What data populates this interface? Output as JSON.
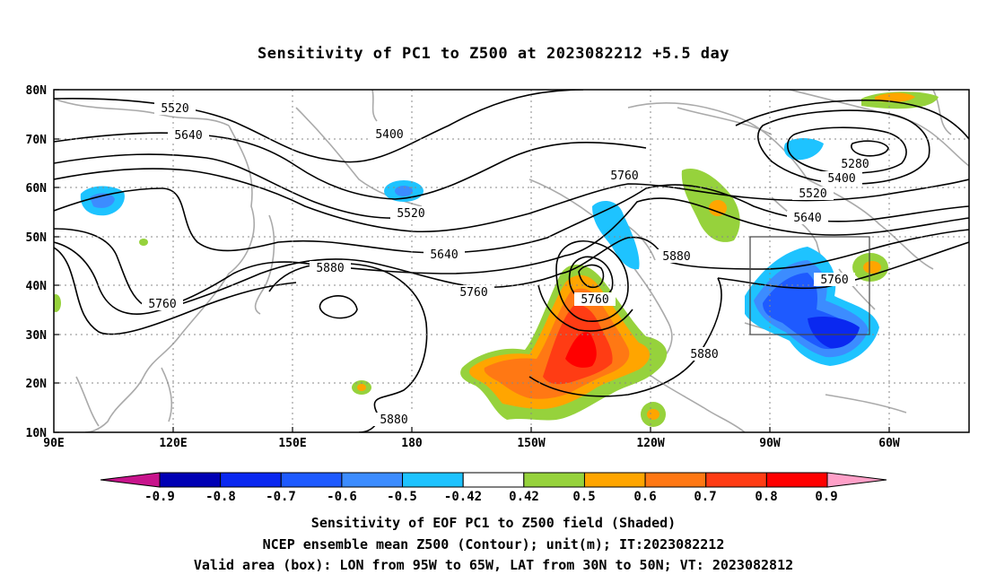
{
  "title": "Sensitivity of PC1 to Z500 at 2023082212 +5.5 day",
  "map": {
    "lat_labels": [
      "80N",
      "70N",
      "60N",
      "50N",
      "40N",
      "30N",
      "20N",
      "10N"
    ],
    "lon_labels": [
      "90E",
      "120E",
      "150E",
      "180",
      "150W",
      "120W",
      "90W",
      "60W"
    ],
    "contour_labels": [
      "5520",
      "5640",
      "5400",
      "5520",
      "5760",
      "5640",
      "5760",
      "5880",
      "5280",
      "5400",
      "5520",
      "5640",
      "5880",
      "5760",
      "5760",
      "5880",
      "5760",
      "5880"
    ],
    "valid_box": {
      "lon_min": "95W",
      "lon_max": "65W",
      "lat_min": "30N",
      "lat_max": "50N"
    }
  },
  "colorbar": {
    "labels": [
      "-0.9",
      "-0.8",
      "-0.7",
      "-0.6",
      "-0.5",
      "-0.42",
      "0.42",
      "0.5",
      "0.6",
      "0.7",
      "0.8",
      "0.9"
    ],
    "colors": [
      "#0000b4",
      "#0a28f0",
      "#1e5aff",
      "#3c8cff",
      "#1ec3ff",
      "#ffffff",
      "#96d23c",
      "#ffa500",
      "#ff7814",
      "#ff3c14",
      "#ff0000"
    ],
    "end_low_color": "#c8148c",
    "end_high_color": "#ffa0c8"
  },
  "captions": [
    "Sensitivity of EOF PC1 to Z500 field (Shaded)",
    "NCEP ensemble mean Z500 (Contour); unit(m); IT:2023082212",
    "Valid area (box): LON from 95W to 65W, LAT from 30N to 50N; VT: 2023082812"
  ]
}
